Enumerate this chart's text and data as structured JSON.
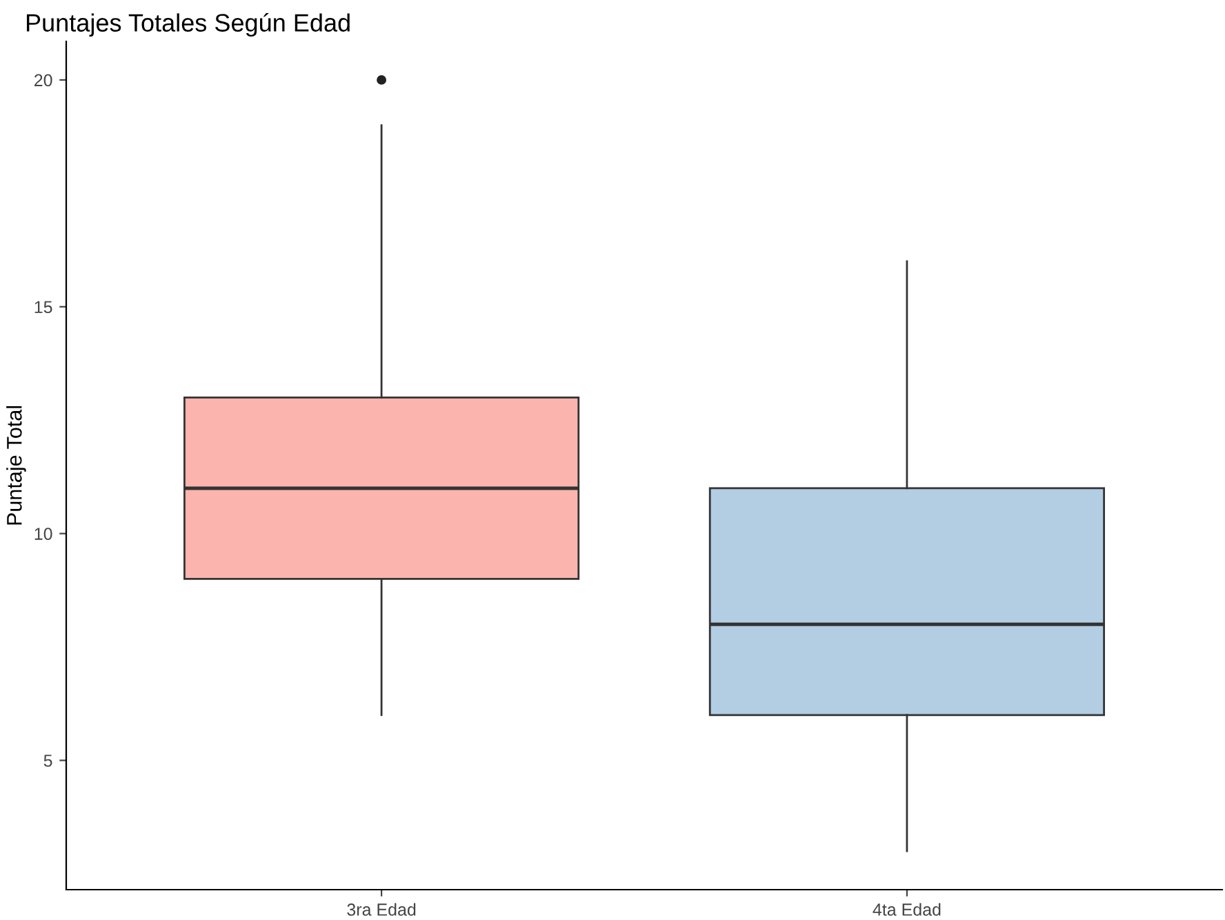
{
  "chart_data": {
    "type": "box",
    "title": "Puntajes Totales Según Edad",
    "ylabel": "Puntaje Total",
    "categories": [
      "3ra Edad",
      "4ta Edad"
    ],
    "boxes": [
      {
        "low": 6,
        "q1": 9,
        "median": 11,
        "q3": 13,
        "high": 19,
        "outliers": [
          20
        ]
      },
      {
        "low": 3,
        "q1": 6,
        "median": 8,
        "q3": 11,
        "high": 16
      }
    ],
    "colors": [
      "#fbb4ae",
      "#b3cde3"
    ],
    "ylim": [
      2.15,
      20.85
    ],
    "yticks": [
      5,
      10,
      15,
      20
    ],
    "grid": false
  }
}
